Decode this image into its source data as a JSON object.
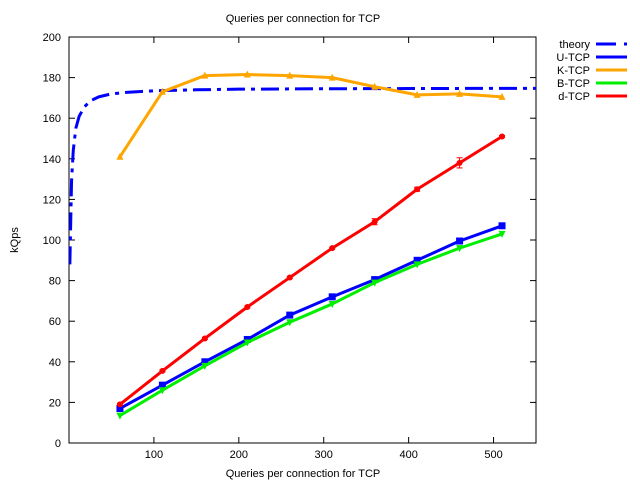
{
  "chart_data": {
    "type": "line",
    "title": "Queries per connection for TCP",
    "xlabel": "Queries per connection for TCP",
    "ylabel": "kQps",
    "xlim": [
      0,
      550
    ],
    "ylim": [
      0,
      200
    ],
    "xticks": [
      100,
      200,
      300,
      400,
      500
    ],
    "yticks": [
      0,
      20,
      40,
      60,
      80,
      100,
      120,
      140,
      160,
      180,
      200
    ],
    "grid": false,
    "legend_position": "top-right, outside plot",
    "series": [
      {
        "name": "theory",
        "color": "#0000ff",
        "style": "dash-dot",
        "marker": "none",
        "x": [
          1,
          3,
          5,
          8,
          12,
          18,
          25,
          35,
          50,
          70,
          100,
          150,
          200,
          300,
          400,
          500,
          550
        ],
        "y": [
          88,
          129,
          144,
          155,
          161,
          165.5,
          168.5,
          170.5,
          172,
          172.8,
          173.5,
          174,
          174.3,
          174.5,
          174.6,
          174.7,
          174.7
        ]
      },
      {
        "name": "U-TCP",
        "color": "#0000ff",
        "style": "solid",
        "marker": "square",
        "x": [
          60,
          110,
          160,
          210,
          260,
          310,
          360,
          410,
          460,
          510
        ],
        "y": [
          17,
          28.5,
          40,
          51,
          63,
          72,
          80.5,
          90,
          99.5,
          107
        ]
      },
      {
        "name": "K-TCP",
        "color": "#ffa500",
        "style": "solid",
        "marker": "triangle-up",
        "x": [
          60,
          110,
          160,
          210,
          260,
          310,
          360,
          410,
          460,
          510
        ],
        "y": [
          141,
          173,
          181,
          181.5,
          181,
          180,
          175.5,
          171.5,
          172,
          170.5
        ]
      },
      {
        "name": "B-TCP",
        "color": "#00ee00",
        "style": "solid",
        "marker": "triangle-down",
        "x": [
          60,
          110,
          160,
          210,
          260,
          310,
          360,
          410,
          460,
          510
        ],
        "y": [
          13.5,
          26,
          38,
          49.5,
          59.5,
          68.5,
          79,
          88,
          96,
          103
        ]
      },
      {
        "name": "d-TCP",
        "color": "#ff0000",
        "style": "solid",
        "marker": "circle",
        "x": [
          60,
          110,
          160,
          210,
          260,
          310,
          360,
          410,
          460,
          510
        ],
        "y": [
          19,
          35.5,
          51.5,
          67,
          81.5,
          96,
          109,
          125,
          138,
          151
        ],
        "error": [
          0.5,
          0.5,
          0.5,
          0.5,
          0.5,
          0.5,
          1.5,
          1,
          2.5,
          0.5
        ]
      }
    ]
  }
}
